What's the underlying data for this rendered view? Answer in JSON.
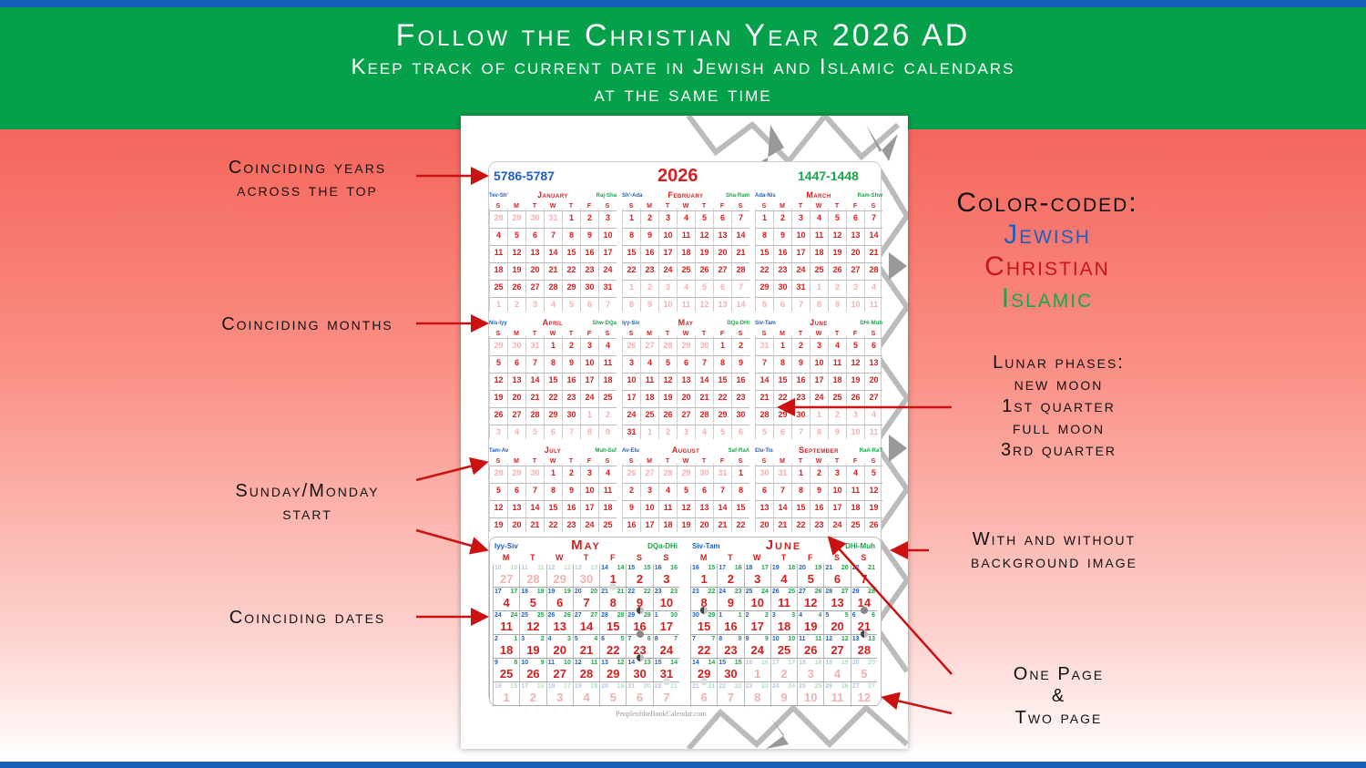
{
  "header": {
    "title": "Follow the Christian Year 2026 AD",
    "subtitle_line1": "Keep track of current date in Jewish and Islamic calendars",
    "subtitle_line2": "at the same time"
  },
  "left_labels": {
    "years": [
      "Coinciding years",
      "across the top"
    ],
    "months": "Coinciding months",
    "start": [
      "Sunday/Monday",
      "start"
    ],
    "dates": "Coinciding dates"
  },
  "right_labels": {
    "color_coded": "Color-coded:",
    "jewish": "Jewish",
    "christian": "Christian",
    "islamic": "Islamic",
    "lunar": [
      "Lunar phases:",
      "new moon",
      "1st quarter",
      "full moon",
      "3rd quarter"
    ],
    "background": [
      "With and without",
      "background image"
    ],
    "pages": [
      "One Page",
      "&",
      "Two page"
    ]
  },
  "colors": {
    "jewish": "#1f5fbf",
    "christian": "#d42020",
    "islamic": "#1ba54a",
    "header_green": "#05a04a",
    "stripe_blue": "#1660b8",
    "arrow_red": "#cc1111"
  },
  "calendar": {
    "jewish_years": "5786-5787",
    "year": "2026",
    "islamic_years": "1447-1448",
    "sunday_days": [
      "S",
      "M",
      "T",
      "W",
      "T",
      "F",
      "S"
    ],
    "monday_days": [
      "M",
      "T",
      "W",
      "T",
      "F",
      "S",
      "S"
    ],
    "months": [
      {
        "name": "January",
        "jewish": "Tev-Sh'",
        "islamic": "Raj-Sha",
        "rows": [
          [
            28,
            29,
            30,
            31,
            1,
            2,
            3
          ],
          [
            4,
            5,
            6,
            7,
            8,
            9,
            10
          ],
          [
            11,
            12,
            13,
            14,
            15,
            16,
            17
          ],
          [
            18,
            19,
            20,
            21,
            22,
            23,
            24
          ],
          [
            25,
            26,
            27,
            28,
            29,
            30,
            31
          ],
          [
            1,
            2,
            3,
            4,
            5,
            6,
            7
          ]
        ]
      },
      {
        "name": "February",
        "jewish": "Sh'-Ada",
        "islamic": "Sha-Ram",
        "rows": [
          [
            1,
            2,
            3,
            4,
            5,
            6,
            7
          ],
          [
            8,
            9,
            10,
            11,
            12,
            13,
            14
          ],
          [
            15,
            16,
            17,
            18,
            19,
            20,
            21
          ],
          [
            22,
            23,
            24,
            25,
            26,
            27,
            28
          ],
          [
            1,
            2,
            3,
            4,
            5,
            6,
            7
          ],
          [
            8,
            9,
            10,
            11,
            12,
            13,
            14
          ]
        ]
      },
      {
        "name": "March",
        "jewish": "Ada-Nis",
        "islamic": "Ram-Shw",
        "rows": [
          [
            1,
            2,
            3,
            4,
            5,
            6,
            7
          ],
          [
            8,
            9,
            10,
            11,
            12,
            13,
            14
          ],
          [
            15,
            16,
            17,
            18,
            19,
            20,
            21
          ],
          [
            22,
            23,
            24,
            25,
            26,
            27,
            28
          ],
          [
            29,
            30,
            31,
            1,
            2,
            3,
            4
          ],
          [
            5,
            6,
            7,
            8,
            9,
            10,
            11
          ]
        ]
      },
      {
        "name": "April",
        "jewish": "Nis-Iyy",
        "islamic": "Shw-DQa",
        "rows": [
          [
            29,
            30,
            31,
            1,
            2,
            3,
            4
          ],
          [
            5,
            6,
            7,
            8,
            9,
            10,
            11
          ],
          [
            12,
            13,
            14,
            15,
            16,
            17,
            18
          ],
          [
            19,
            20,
            21,
            22,
            23,
            24,
            25
          ],
          [
            26,
            27,
            28,
            29,
            30,
            1,
            2
          ],
          [
            3,
            4,
            5,
            6,
            7,
            8,
            9
          ]
        ]
      },
      {
        "name": "May",
        "jewish": "Iyy-Siv",
        "islamic": "DQa-DHi",
        "rows": [
          [
            26,
            27,
            28,
            29,
            30,
            1,
            2
          ],
          [
            3,
            4,
            5,
            6,
            7,
            8,
            9
          ],
          [
            10,
            11,
            12,
            13,
            14,
            15,
            16
          ],
          [
            17,
            18,
            19,
            20,
            21,
            22,
            23
          ],
          [
            24,
            25,
            26,
            27,
            28,
            29,
            30
          ],
          [
            31,
            1,
            2,
            3,
            4,
            5,
            6
          ]
        ]
      },
      {
        "name": "June",
        "jewish": "Siv-Tam",
        "islamic": "DHi-Muh",
        "rows": [
          [
            31,
            1,
            2,
            3,
            4,
            5,
            6
          ],
          [
            7,
            8,
            9,
            10,
            11,
            12,
            13
          ],
          [
            14,
            15,
            16,
            17,
            18,
            19,
            20
          ],
          [
            21,
            22,
            23,
            24,
            25,
            26,
            27
          ],
          [
            28,
            29,
            30,
            1,
            2,
            3,
            4
          ],
          [
            5,
            6,
            7,
            8,
            9,
            10,
            11
          ]
        ]
      },
      {
        "name": "July",
        "jewish": "Tam-Av",
        "islamic": "Muh-Saf",
        "rows": [
          [
            28,
            29,
            30,
            1,
            2,
            3,
            4
          ],
          [
            5,
            6,
            7,
            8,
            9,
            10,
            11
          ],
          [
            12,
            13,
            14,
            15,
            16,
            17,
            18
          ],
          [
            19,
            20,
            21,
            22,
            23,
            24,
            25
          ]
        ]
      },
      {
        "name": "August",
        "jewish": "Av-Elu",
        "islamic": "Saf-RaA",
        "rows": [
          [
            26,
            27,
            28,
            29,
            30,
            31,
            1
          ],
          [
            2,
            3,
            4,
            5,
            6,
            7,
            8
          ],
          [
            9,
            10,
            11,
            12,
            13,
            14,
            15
          ],
          [
            16,
            17,
            18,
            19,
            20,
            21,
            22
          ]
        ]
      },
      {
        "name": "September",
        "jewish": "Elu-Tis",
        "islamic": "RaA-RaT",
        "rows": [
          [
            30,
            31,
            1,
            2,
            3,
            4,
            5
          ],
          [
            6,
            7,
            8,
            9,
            10,
            11,
            12
          ],
          [
            13,
            14,
            15,
            16,
            17,
            18,
            19
          ],
          [
            20,
            21,
            22,
            23,
            24,
            25,
            26
          ]
        ]
      }
    ],
    "two_page": [
      {
        "name": "May",
        "jewish": "Iyy-Siv",
        "islamic": "DQa-DHi",
        "christian": [
          [
            27,
            28,
            29,
            30,
            1,
            2,
            3
          ],
          [
            4,
            5,
            6,
            7,
            8,
            9,
            10
          ],
          [
            11,
            12,
            13,
            14,
            15,
            16,
            17
          ],
          [
            18,
            19,
            20,
            21,
            22,
            23,
            24
          ],
          [
            25,
            26,
            27,
            28,
            29,
            30,
            31
          ],
          [
            1,
            2,
            3,
            4,
            5,
            6,
            7
          ]
        ],
        "jewish_dates": [
          [
            10,
            11,
            12,
            13,
            14,
            15,
            16
          ],
          [
            17,
            18,
            19,
            20,
            21,
            22,
            23
          ],
          [
            24,
            25,
            26,
            27,
            28,
            29,
            1
          ],
          [
            2,
            3,
            4,
            5,
            6,
            7,
            8
          ],
          [
            9,
            10,
            11,
            12,
            13,
            14,
            15
          ],
          [
            16,
            17,
            18,
            19,
            20,
            21,
            22
          ]
        ],
        "islamic_dates": [
          [
            10,
            11,
            12,
            13,
            14,
            15,
            16
          ],
          [
            17,
            18,
            19,
            20,
            21,
            22,
            23
          ],
          [
            24,
            25,
            26,
            27,
            28,
            29,
            30
          ],
          [
            1,
            2,
            3,
            4,
            5,
            6,
            7
          ],
          [
            8,
            9,
            10,
            11,
            12,
            13,
            14
          ],
          [
            15,
            16,
            17,
            18,
            19,
            20,
            21
          ]
        ],
        "faded": [
          [
            1,
            1,
            1,
            1,
            0,
            0,
            0
          ],
          [
            0,
            0,
            0,
            0,
            0,
            0,
            0
          ],
          [
            0,
            0,
            0,
            0,
            0,
            0,
            0
          ],
          [
            0,
            0,
            0,
            0,
            0,
            0,
            0
          ],
          [
            0,
            0,
            0,
            0,
            0,
            0,
            0
          ],
          [
            1,
            1,
            1,
            1,
            1,
            1,
            1
          ]
        ],
        "moons": {
          "0-4": "full",
          "1-5": "q",
          "2-5": "new",
          "3-5": "q",
          "4-6": "full"
        }
      },
      {
        "name": "June",
        "jewish": "Siv-Tam",
        "islamic": "DHi-Muh",
        "christian": [
          [
            1,
            2,
            3,
            4,
            5,
            6,
            7
          ],
          [
            8,
            9,
            10,
            11,
            12,
            13,
            14
          ],
          [
            15,
            16,
            17,
            18,
            19,
            20,
            21
          ],
          [
            22,
            23,
            24,
            25,
            26,
            27,
            28
          ],
          [
            29,
            30,
            1,
            2,
            3,
            4,
            5
          ],
          [
            6,
            7,
            8,
            9,
            10,
            11,
            12
          ]
        ],
        "jewish_dates": [
          [
            16,
            17,
            18,
            19,
            20,
            21,
            22
          ],
          [
            23,
            24,
            25,
            26,
            27,
            28,
            29
          ],
          [
            30,
            1,
            2,
            3,
            4,
            5,
            6
          ],
          [
            7,
            8,
            9,
            10,
            11,
            12,
            13
          ],
          [
            14,
            15,
            16,
            17,
            18,
            19,
            20
          ],
          [
            21,
            22,
            23,
            24,
            25,
            26,
            27
          ]
        ],
        "islamic_dates": [
          [
            15,
            16,
            17,
            18,
            19,
            20,
            21
          ],
          [
            22,
            23,
            24,
            25,
            26,
            27,
            28
          ],
          [
            29,
            1,
            2,
            3,
            4,
            5,
            6
          ],
          [
            7,
            8,
            9,
            10,
            11,
            12,
            13
          ],
          [
            14,
            15,
            16,
            17,
            18,
            19,
            20
          ],
          [
            21,
            22,
            23,
            24,
            25,
            26,
            27
          ]
        ],
        "faded": [
          [
            0,
            0,
            0,
            0,
            0,
            0,
            0
          ],
          [
            0,
            0,
            0,
            0,
            0,
            0,
            0
          ],
          [
            0,
            0,
            0,
            0,
            0,
            0,
            0
          ],
          [
            0,
            0,
            0,
            0,
            0,
            0,
            0
          ],
          [
            0,
            0,
            1,
            1,
            1,
            1,
            1
          ],
          [
            1,
            1,
            1,
            1,
            1,
            1,
            1
          ]
        ],
        "moons": {
          "1-0": "q",
          "1-6": "new",
          "2-6": "q",
          "4-0": "full"
        }
      }
    ],
    "watermark": "PeopleoftheBookCalendar.com"
  }
}
